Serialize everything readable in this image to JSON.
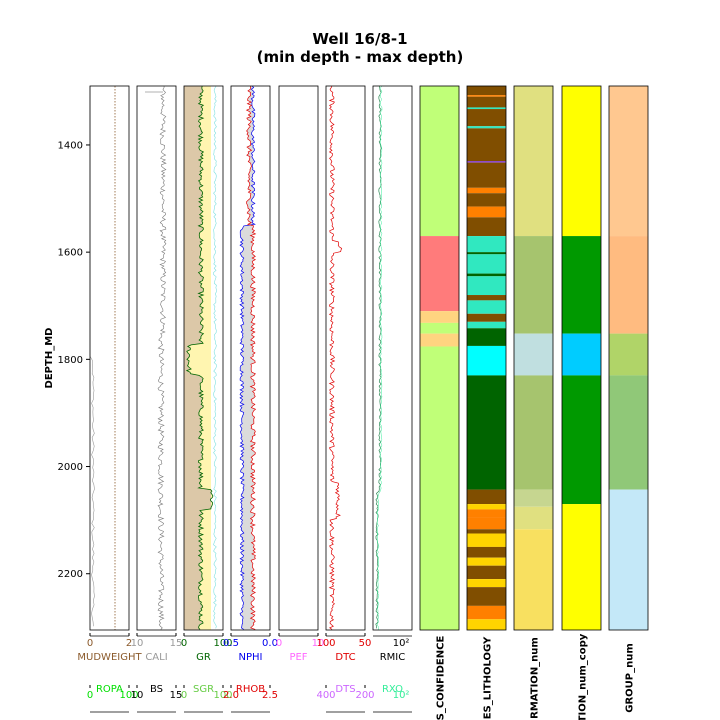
{
  "chart_data": {
    "type": "well-log",
    "title_line1": "Well 16/8-1",
    "title_line2": "(min depth - max depth)",
    "ylabel": "DEPTH_MD",
    "ylim": [
      1290,
      2305
    ],
    "yticks": [
      "1400",
      "1600",
      "1800",
      "2000",
      "2200"
    ],
    "tracks": [
      {
        "id": "t1",
        "scales": [
          {
            "name": "MUDWEIGHT",
            "color": "#8B5A2B",
            "ticks": [
              "0",
              "2"
            ]
          },
          {
            "name": "ROPA",
            "color": "#00e000",
            "ticks": [
              "0",
              "100"
            ]
          }
        ]
      },
      {
        "id": "t2",
        "scales": [
          {
            "name": "CALI",
            "color": "#999999",
            "ticks": [
              "10",
              "15"
            ]
          },
          {
            "name": "BS",
            "color": "#000000",
            "ticks": [
              "10",
              "15"
            ]
          }
        ]
      },
      {
        "id": "t3",
        "scales": [
          {
            "name": "GR",
            "color": "#006400",
            "ticks": [
              "0",
              "100"
            ]
          },
          {
            "name": "SGR",
            "color": "#66cc44",
            "ticks": [
              "0",
              "100"
            ]
          }
        ]
      },
      {
        "id": "t4",
        "scales": [
          {
            "name": "NPHI",
            "color": "#0000ee",
            "ticks": [
              "0.5",
              "0.0"
            ]
          },
          {
            "name": "RHOB",
            "color": "#e00000",
            "ticks": [
              "2.0",
              "2.5"
            ]
          }
        ]
      },
      {
        "id": "t5",
        "scales": [
          {
            "name": "PEF",
            "color": "#ff66ff",
            "ticks": [
              "0",
              "10"
            ]
          }
        ]
      },
      {
        "id": "t6",
        "scales": [
          {
            "name": "DTC",
            "color": "#e00000",
            "ticks": [
              "100",
              "50"
            ]
          },
          {
            "name": "DTS",
            "color": "#cc66ff",
            "ticks": [
              "400",
              "200"
            ]
          }
        ]
      },
      {
        "id": "t7",
        "scales": [
          {
            "name": "RMIC",
            "color": "#000000",
            "ticks": [
              "10²"
            ]
          },
          {
            "name": "RXO",
            "color": "#33ee99",
            "ticks": [
              "10²"
            ]
          }
        ]
      }
    ],
    "category_tracks": [
      {
        "label": "S_CONFIDENCE",
        "intervals": [
          {
            "top": 1290,
            "base": 1570,
            "color": "#c0ff78"
          },
          {
            "top": 1570,
            "base": 1710,
            "color": "#ff7b7b"
          },
          {
            "top": 1710,
            "base": 1732,
            "color": "#ffd480"
          },
          {
            "top": 1732,
            "base": 1752,
            "color": "#c0ff78"
          },
          {
            "top": 1752,
            "base": 1776,
            "color": "#ffd480"
          },
          {
            "top": 1776,
            "base": 2305,
            "color": "#c0ff78"
          }
        ]
      },
      {
        "label": "ES_LITHOLOGY",
        "intervals": [
          {
            "top": 1290,
            "base": 1307,
            "color": "#804e00"
          },
          {
            "top": 1307,
            "base": 1310,
            "color": "#ff8000"
          },
          {
            "top": 1310,
            "base": 1330,
            "color": "#804e00"
          },
          {
            "top": 1330,
            "base": 1333,
            "color": "#30e8c0"
          },
          {
            "top": 1333,
            "base": 1365,
            "color": "#804e00"
          },
          {
            "top": 1365,
            "base": 1369,
            "color": "#30e8c0"
          },
          {
            "top": 1369,
            "base": 1430,
            "color": "#804e00"
          },
          {
            "top": 1430,
            "base": 1433,
            "color": "#8844cc"
          },
          {
            "top": 1433,
            "base": 1480,
            "color": "#804e00"
          },
          {
            "top": 1480,
            "base": 1490,
            "color": "#ff8000"
          },
          {
            "top": 1490,
            "base": 1515,
            "color": "#804e00"
          },
          {
            "top": 1515,
            "base": 1535,
            "color": "#ff8000"
          },
          {
            "top": 1535,
            "base": 1570,
            "color": "#804e00"
          },
          {
            "top": 1570,
            "base": 1600,
            "color": "#30e8c0"
          },
          {
            "top": 1600,
            "base": 1604,
            "color": "#006400"
          },
          {
            "top": 1604,
            "base": 1640,
            "color": "#30e8c0"
          },
          {
            "top": 1640,
            "base": 1645,
            "color": "#006400"
          },
          {
            "top": 1645,
            "base": 1680,
            "color": "#30e8c0"
          },
          {
            "top": 1680,
            "base": 1690,
            "color": "#804e00"
          },
          {
            "top": 1690,
            "base": 1715,
            "color": "#30e8c0"
          },
          {
            "top": 1715,
            "base": 1730,
            "color": "#804e00"
          },
          {
            "top": 1730,
            "base": 1742,
            "color": "#30e8c0"
          },
          {
            "top": 1742,
            "base": 1775,
            "color": "#006400"
          },
          {
            "top": 1775,
            "base": 1830,
            "color": "#00ffff"
          },
          {
            "top": 1830,
            "base": 2043,
            "color": "#006400"
          },
          {
            "top": 2043,
            "base": 2070,
            "color": "#804e00"
          },
          {
            "top": 2070,
            "base": 2080,
            "color": "#ffd400"
          },
          {
            "top": 2080,
            "base": 2095,
            "color": "#ff8000"
          },
          {
            "top": 2095,
            "base": 2117,
            "color": "#ff8000"
          },
          {
            "top": 2117,
            "base": 2125,
            "color": "#804e00"
          },
          {
            "top": 2125,
            "base": 2150,
            "color": "#ffd400"
          },
          {
            "top": 2150,
            "base": 2170,
            "color": "#804e00"
          },
          {
            "top": 2170,
            "base": 2185,
            "color": "#ffd400"
          },
          {
            "top": 2185,
            "base": 2210,
            "color": "#804e00"
          },
          {
            "top": 2210,
            "base": 2225,
            "color": "#ffd400"
          },
          {
            "top": 2225,
            "base": 2260,
            "color": "#804e00"
          },
          {
            "top": 2260,
            "base": 2285,
            "color": "#ff8000"
          },
          {
            "top": 2285,
            "base": 2305,
            "color": "#ffd400"
          }
        ]
      },
      {
        "label": "RMATION_num",
        "intervals": [
          {
            "top": 1290,
            "base": 1570,
            "color": "#e0e080"
          },
          {
            "top": 1570,
            "base": 1752,
            "color": "#a6c46e"
          },
          {
            "top": 1752,
            "base": 1830,
            "color": "#c0dfe0"
          },
          {
            "top": 1830,
            "base": 2043,
            "color": "#a6c46e"
          },
          {
            "top": 2043,
            "base": 2075,
            "color": "#c6d690"
          },
          {
            "top": 2075,
            "base": 2117,
            "color": "#e0e080"
          },
          {
            "top": 2117,
            "base": 2305,
            "color": "#f8e060"
          }
        ]
      },
      {
        "label": "TION_num_copy",
        "intervals": [
          {
            "top": 1290,
            "base": 1570,
            "color": "#ffff00"
          },
          {
            "top": 1570,
            "base": 1752,
            "color": "#009900"
          },
          {
            "top": 1752,
            "base": 1830,
            "color": "#00ccff"
          },
          {
            "top": 1830,
            "base": 2070,
            "color": "#009900"
          },
          {
            "top": 2070,
            "base": 2305,
            "color": "#ffff00"
          }
        ]
      },
      {
        "label": "GROUP_num",
        "intervals": [
          {
            "top": 1290,
            "base": 1570,
            "color": "#ffc890"
          },
          {
            "top": 1570,
            "base": 1752,
            "color": "#ffbb80"
          },
          {
            "top": 1752,
            "base": 1830,
            "color": "#b0d468"
          },
          {
            "top": 1830,
            "base": 2043,
            "color": "#90c878"
          },
          {
            "top": 2043,
            "base": 2305,
            "color": "#c4e8f8"
          }
        ]
      }
    ]
  }
}
